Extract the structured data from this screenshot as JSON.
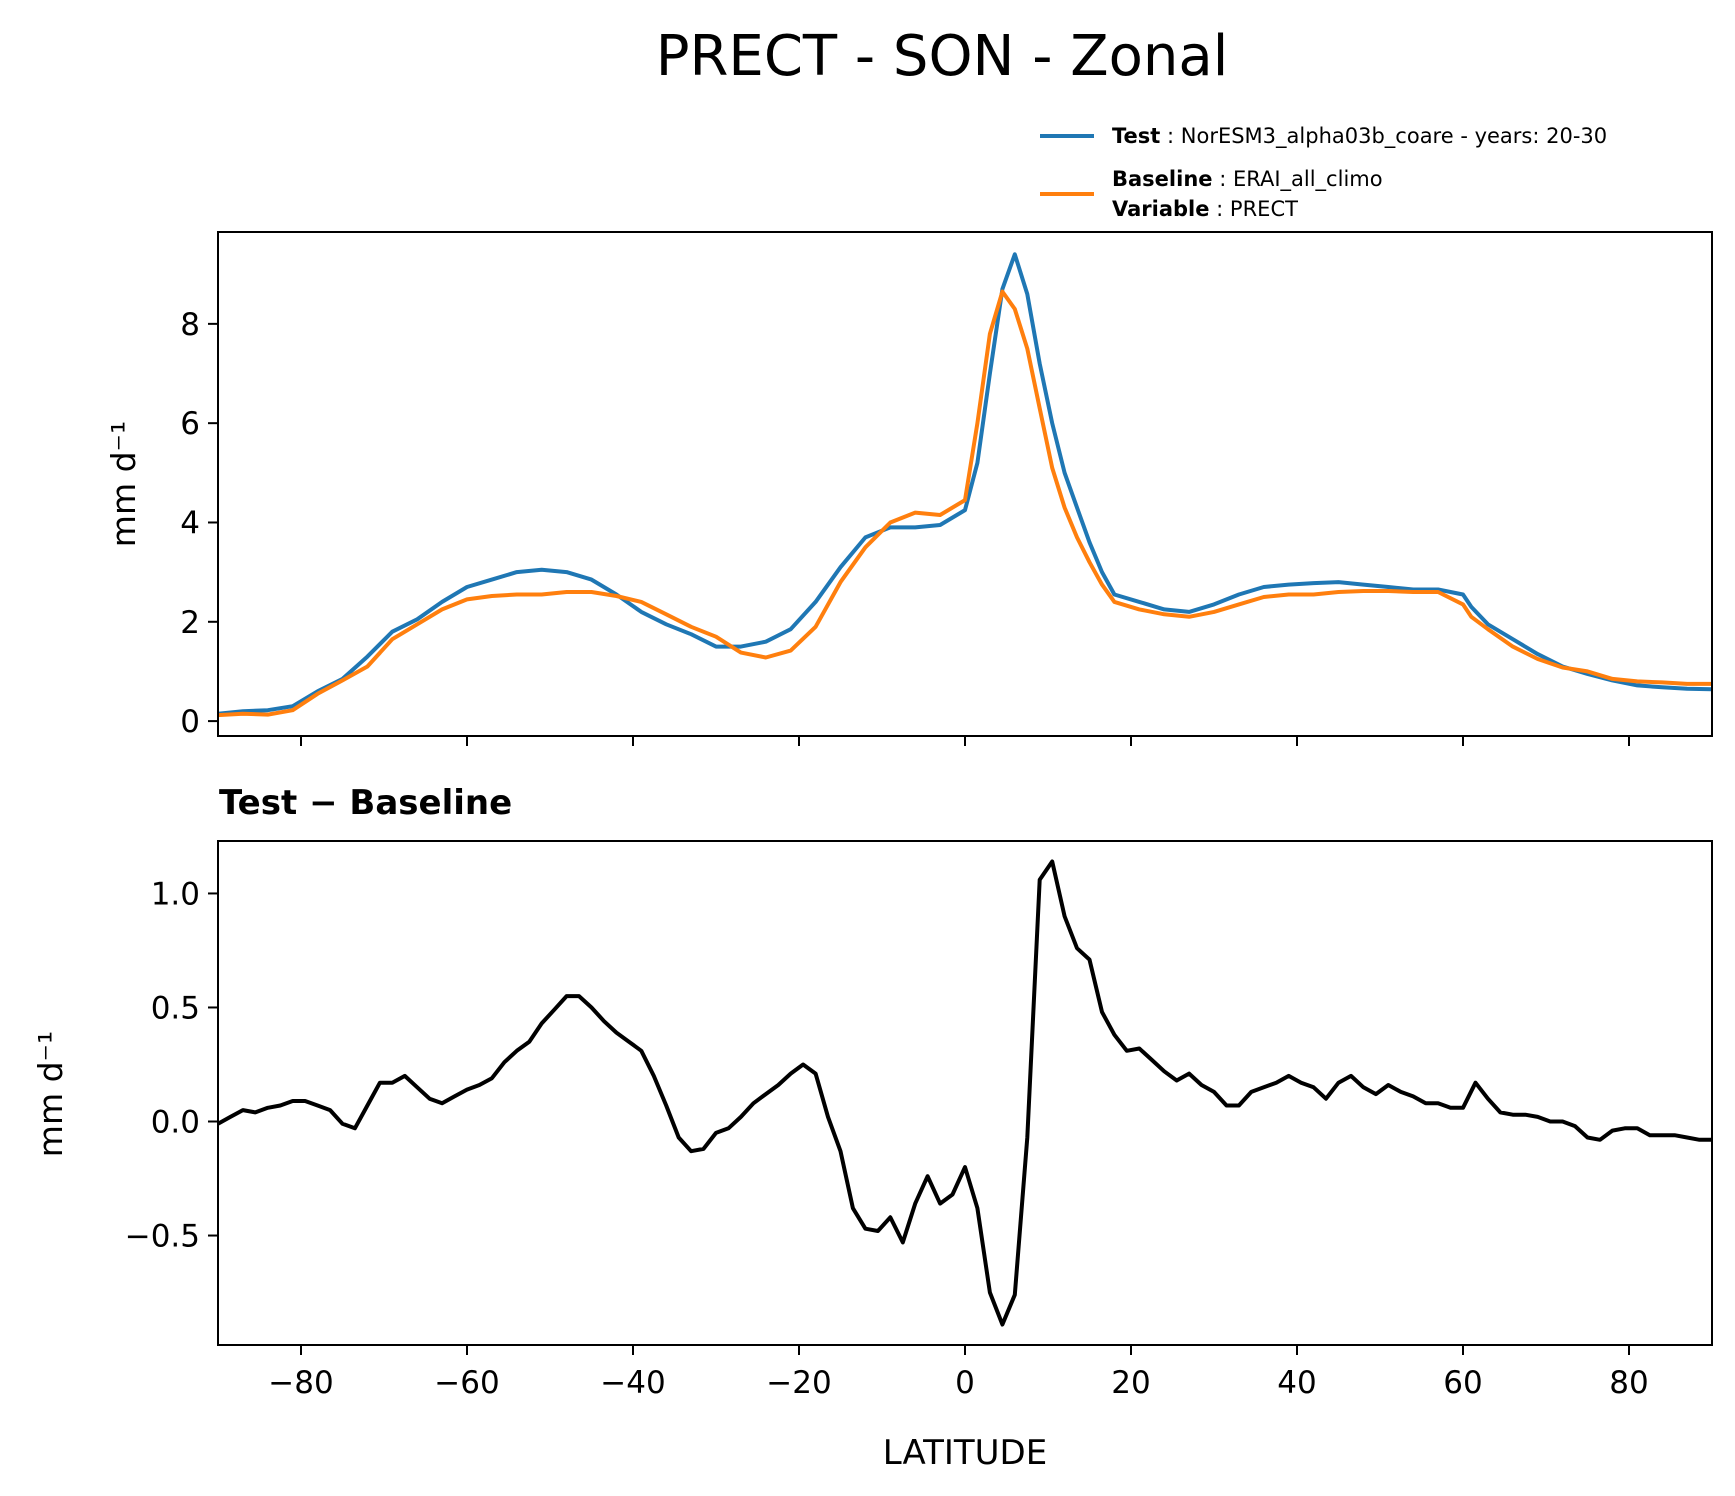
{
  "figure_title": "PRECT - SON - Zonal",
  "legend": {
    "test": {
      "label": "Test",
      "value": "NorESM3_alpha03b_coare - years: 20-30",
      "color": "#1f77b4"
    },
    "baseline": {
      "label": "Baseline",
      "value": "ERAI_all_climo",
      "color": "#ff7f0e"
    },
    "variable": {
      "label": "Variable",
      "value": "PRECT"
    }
  },
  "diff_title": {
    "left": "Test",
    "sep": "−",
    "right": "Baseline"
  },
  "chart_data": [
    {
      "type": "line",
      "panel": "top",
      "title": "",
      "xlabel": "",
      "ylabel": "mm d⁻¹",
      "xlim": [
        -90,
        90
      ],
      "ylim": [
        -0.3,
        9.85
      ],
      "yticks": [
        0,
        2,
        4,
        6,
        8
      ],
      "xticks": [
        -80,
        -60,
        -40,
        -20,
        0,
        20,
        40,
        60,
        80
      ],
      "x": [
        -90,
        -87,
        -84,
        -81,
        -78,
        -75,
        -72,
        -69,
        -66,
        -63,
        -60,
        -57,
        -54,
        -51,
        -48,
        -45,
        -42,
        -39,
        -36,
        -33,
        -30,
        -27,
        -24,
        -21,
        -18,
        -15,
        -12,
        -9,
        -6,
        -3,
        0,
        1.5,
        3,
        4.5,
        6,
        7.5,
        9,
        10.5,
        12,
        13.5,
        15,
        16.5,
        18,
        21,
        24,
        27,
        30,
        33,
        36,
        39,
        42,
        45,
        48,
        51,
        54,
        57,
        60,
        61,
        63,
        66,
        69,
        72,
        75,
        78,
        81,
        84,
        87,
        90
      ],
      "series": [
        {
          "name": "Test",
          "color": "#1f77b4",
          "values": [
            0.15,
            0.2,
            0.22,
            0.3,
            0.6,
            0.85,
            1.3,
            1.8,
            2.05,
            2.4,
            2.7,
            2.85,
            3.0,
            3.05,
            3.0,
            2.85,
            2.55,
            2.2,
            1.95,
            1.75,
            1.5,
            1.5,
            1.6,
            1.85,
            2.4,
            3.1,
            3.7,
            3.9,
            3.9,
            3.95,
            4.25,
            5.2,
            7.0,
            8.7,
            9.4,
            8.6,
            7.2,
            6.0,
            5.0,
            4.3,
            3.6,
            3.0,
            2.55,
            2.4,
            2.25,
            2.2,
            2.35,
            2.55,
            2.7,
            2.75,
            2.78,
            2.8,
            2.75,
            2.7,
            2.65,
            2.65,
            2.55,
            2.3,
            1.95,
            1.65,
            1.35,
            1.1,
            0.95,
            0.82,
            0.72,
            0.68,
            0.65,
            0.64
          ]
        },
        {
          "name": "Baseline",
          "color": "#ff7f0e",
          "values": [
            0.12,
            0.15,
            0.13,
            0.22,
            0.55,
            0.82,
            1.1,
            1.65,
            1.95,
            2.25,
            2.45,
            2.52,
            2.55,
            2.55,
            2.6,
            2.6,
            2.52,
            2.4,
            2.15,
            1.9,
            1.7,
            1.38,
            1.28,
            1.42,
            1.9,
            2.8,
            3.5,
            4.0,
            4.2,
            4.15,
            4.45,
            6.0,
            7.8,
            8.65,
            8.3,
            7.5,
            6.3,
            5.1,
            4.3,
            3.7,
            3.2,
            2.75,
            2.4,
            2.25,
            2.15,
            2.1,
            2.2,
            2.35,
            2.5,
            2.55,
            2.55,
            2.6,
            2.62,
            2.62,
            2.6,
            2.6,
            2.35,
            2.1,
            1.85,
            1.5,
            1.25,
            1.08,
            1.0,
            0.85,
            0.8,
            0.78,
            0.75,
            0.75
          ]
        }
      ]
    },
    {
      "type": "line",
      "panel": "bottom",
      "title": "Test − Baseline",
      "xlabel": "LATITUDE",
      "ylabel": "mm d⁻¹",
      "xlim": [
        -90,
        90
      ],
      "ylim": [
        -0.98,
        1.23
      ],
      "yticks": [
        -0.5,
        0.0,
        0.5,
        1.0
      ],
      "ytick_labels": [
        "−0.5",
        "0.0",
        "0.5",
        "1.0"
      ],
      "xticks": [
        -80,
        -60,
        -40,
        -20,
        0,
        20,
        40,
        60,
        80
      ],
      "xtick_labels": [
        "−80",
        "−60",
        "−40",
        "−20",
        "0",
        "20",
        "40",
        "60",
        "80"
      ],
      "series": [
        {
          "name": "Test − Baseline",
          "color": "#000000",
          "x": [
            -90,
            -88.5,
            -87,
            -85.5,
            -84,
            -82.5,
            -81,
            -79.5,
            -78,
            -76.5,
            -75,
            -73.5,
            -72,
            -70.5,
            -69,
            -67.5,
            -66,
            -64.5,
            -63,
            -61.5,
            -60,
            -58.5,
            -57,
            -55.5,
            -54,
            -52.5,
            -51,
            -49.5,
            -48,
            -46.5,
            -45,
            -43.5,
            -42,
            -40.5,
            -39,
            -37.5,
            -36,
            -34.5,
            -33,
            -31.5,
            -30,
            -28.5,
            -27,
            -25.5,
            -24,
            -22.5,
            -21,
            -19.5,
            -18,
            -16.5,
            -15,
            -13.5,
            -12,
            -10.5,
            -9,
            -7.5,
            -6,
            -4.5,
            -3,
            -1.5,
            0,
            1.5,
            3,
            4.5,
            6,
            7.5,
            9,
            10.5,
            12,
            13.5,
            15,
            16.5,
            18,
            19.5,
            21,
            22.5,
            24,
            25.5,
            27,
            28.5,
            30,
            31.5,
            33,
            34.5,
            36,
            37.5,
            39,
            40.5,
            42,
            43.5,
            45,
            46.5,
            48,
            49.5,
            51,
            52.5,
            54,
            55.5,
            57,
            58.5,
            60,
            61.5,
            63,
            64.5,
            66,
            67.5,
            69,
            70.5,
            72,
            73.5,
            75,
            76.5,
            78,
            79.5,
            81,
            82.5,
            84,
            85.5,
            87,
            88.5,
            90
          ],
          "values": [
            -0.01,
            0.02,
            0.05,
            0.04,
            0.06,
            0.07,
            0.09,
            0.09,
            0.07,
            0.05,
            -0.01,
            -0.03,
            0.07,
            0.17,
            0.17,
            0.2,
            0.15,
            0.1,
            0.08,
            0.11,
            0.14,
            0.16,
            0.19,
            0.26,
            0.31,
            0.35,
            0.43,
            0.49,
            0.55,
            0.55,
            0.5,
            0.44,
            0.39,
            0.35,
            0.31,
            0.2,
            0.07,
            -0.07,
            -0.13,
            -0.12,
            -0.05,
            -0.03,
            0.02,
            0.08,
            0.12,
            0.16,
            0.21,
            0.25,
            0.21,
            0.02,
            -0.13,
            -0.38,
            -0.47,
            -0.48,
            -0.42,
            -0.53,
            -0.36,
            -0.24,
            -0.36,
            -0.32,
            -0.2,
            -0.38,
            -0.75,
            -0.89,
            -0.76,
            -0.07,
            1.06,
            1.14,
            0.9,
            0.76,
            0.71,
            0.48,
            0.38,
            0.31,
            0.32,
            0.27,
            0.22,
            0.18,
            0.21,
            0.16,
            0.13,
            0.07,
            0.07,
            0.13,
            0.15,
            0.17,
            0.2,
            0.17,
            0.15,
            0.1,
            0.17,
            0.2,
            0.15,
            0.12,
            0.16,
            0.13,
            0.11,
            0.08,
            0.08,
            0.06,
            0.06,
            0.17,
            0.1,
            0.04,
            0.03,
            0.03,
            0.02,
            0.0,
            0.0,
            -0.02,
            -0.07,
            -0.08,
            -0.04,
            -0.03,
            -0.03,
            -0.06,
            -0.06,
            -0.06,
            -0.07,
            -0.08,
            -0.08
          ]
        }
      ]
    }
  ]
}
